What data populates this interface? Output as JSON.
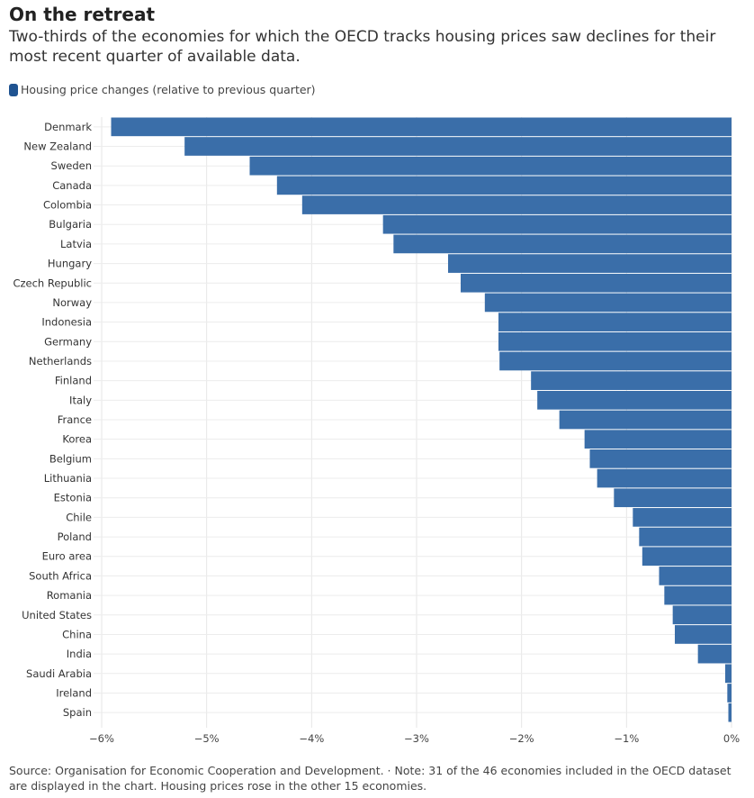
{
  "title": "On the retreat",
  "subtitle": "Two-thirds of the economies for which the OECD tracks housing prices saw declines for their most recent quarter of available data.",
  "legend": {
    "label": "Housing price changes (relative to previous quarter)",
    "color": "#1f5391"
  },
  "footnote": "Source: Organisation for Economic Cooperation and Development. · Note: 31 of the 46 economies included in the OECD dataset are displayed in the chart. Housing prices rose in the other 15 economies.",
  "chart_data": {
    "type": "bar",
    "orientation": "horizontal",
    "bar_color": "#3a6ea9",
    "grid": true,
    "xlim": [
      -6,
      0
    ],
    "x_ticks": [
      -6,
      -5,
      -4,
      -3,
      -2,
      -1,
      0
    ],
    "x_tick_labels": [
      "−6%",
      "−5%",
      "−4%",
      "−3%",
      "−2%",
      "−1%",
      "0%"
    ],
    "categories": [
      "Denmark",
      "New Zealand",
      "Sweden",
      "Canada",
      "Colombia",
      "Bulgaria",
      "Latvia",
      "Hungary",
      "Czech Republic",
      "Norway",
      "Indonesia",
      "Germany",
      "Netherlands",
      "Finland",
      "Italy",
      "France",
      "Korea",
      "Belgium",
      "Lithuania",
      "Estonia",
      "Chile",
      "Poland",
      "Euro area",
      "South Africa",
      "Romania",
      "United States",
      "China",
      "India",
      "Saudi Arabia",
      "Ireland",
      "Spain"
    ],
    "values": [
      -5.91,
      -5.21,
      -4.59,
      -4.33,
      -4.09,
      -3.32,
      -3.22,
      -2.7,
      -2.58,
      -2.35,
      -2.22,
      -2.22,
      -2.21,
      -1.91,
      -1.85,
      -1.64,
      -1.4,
      -1.35,
      -1.28,
      -1.12,
      -0.94,
      -0.88,
      -0.85,
      -0.69,
      -0.64,
      -0.56,
      -0.54,
      -0.32,
      -0.06,
      -0.04,
      -0.03
    ]
  }
}
